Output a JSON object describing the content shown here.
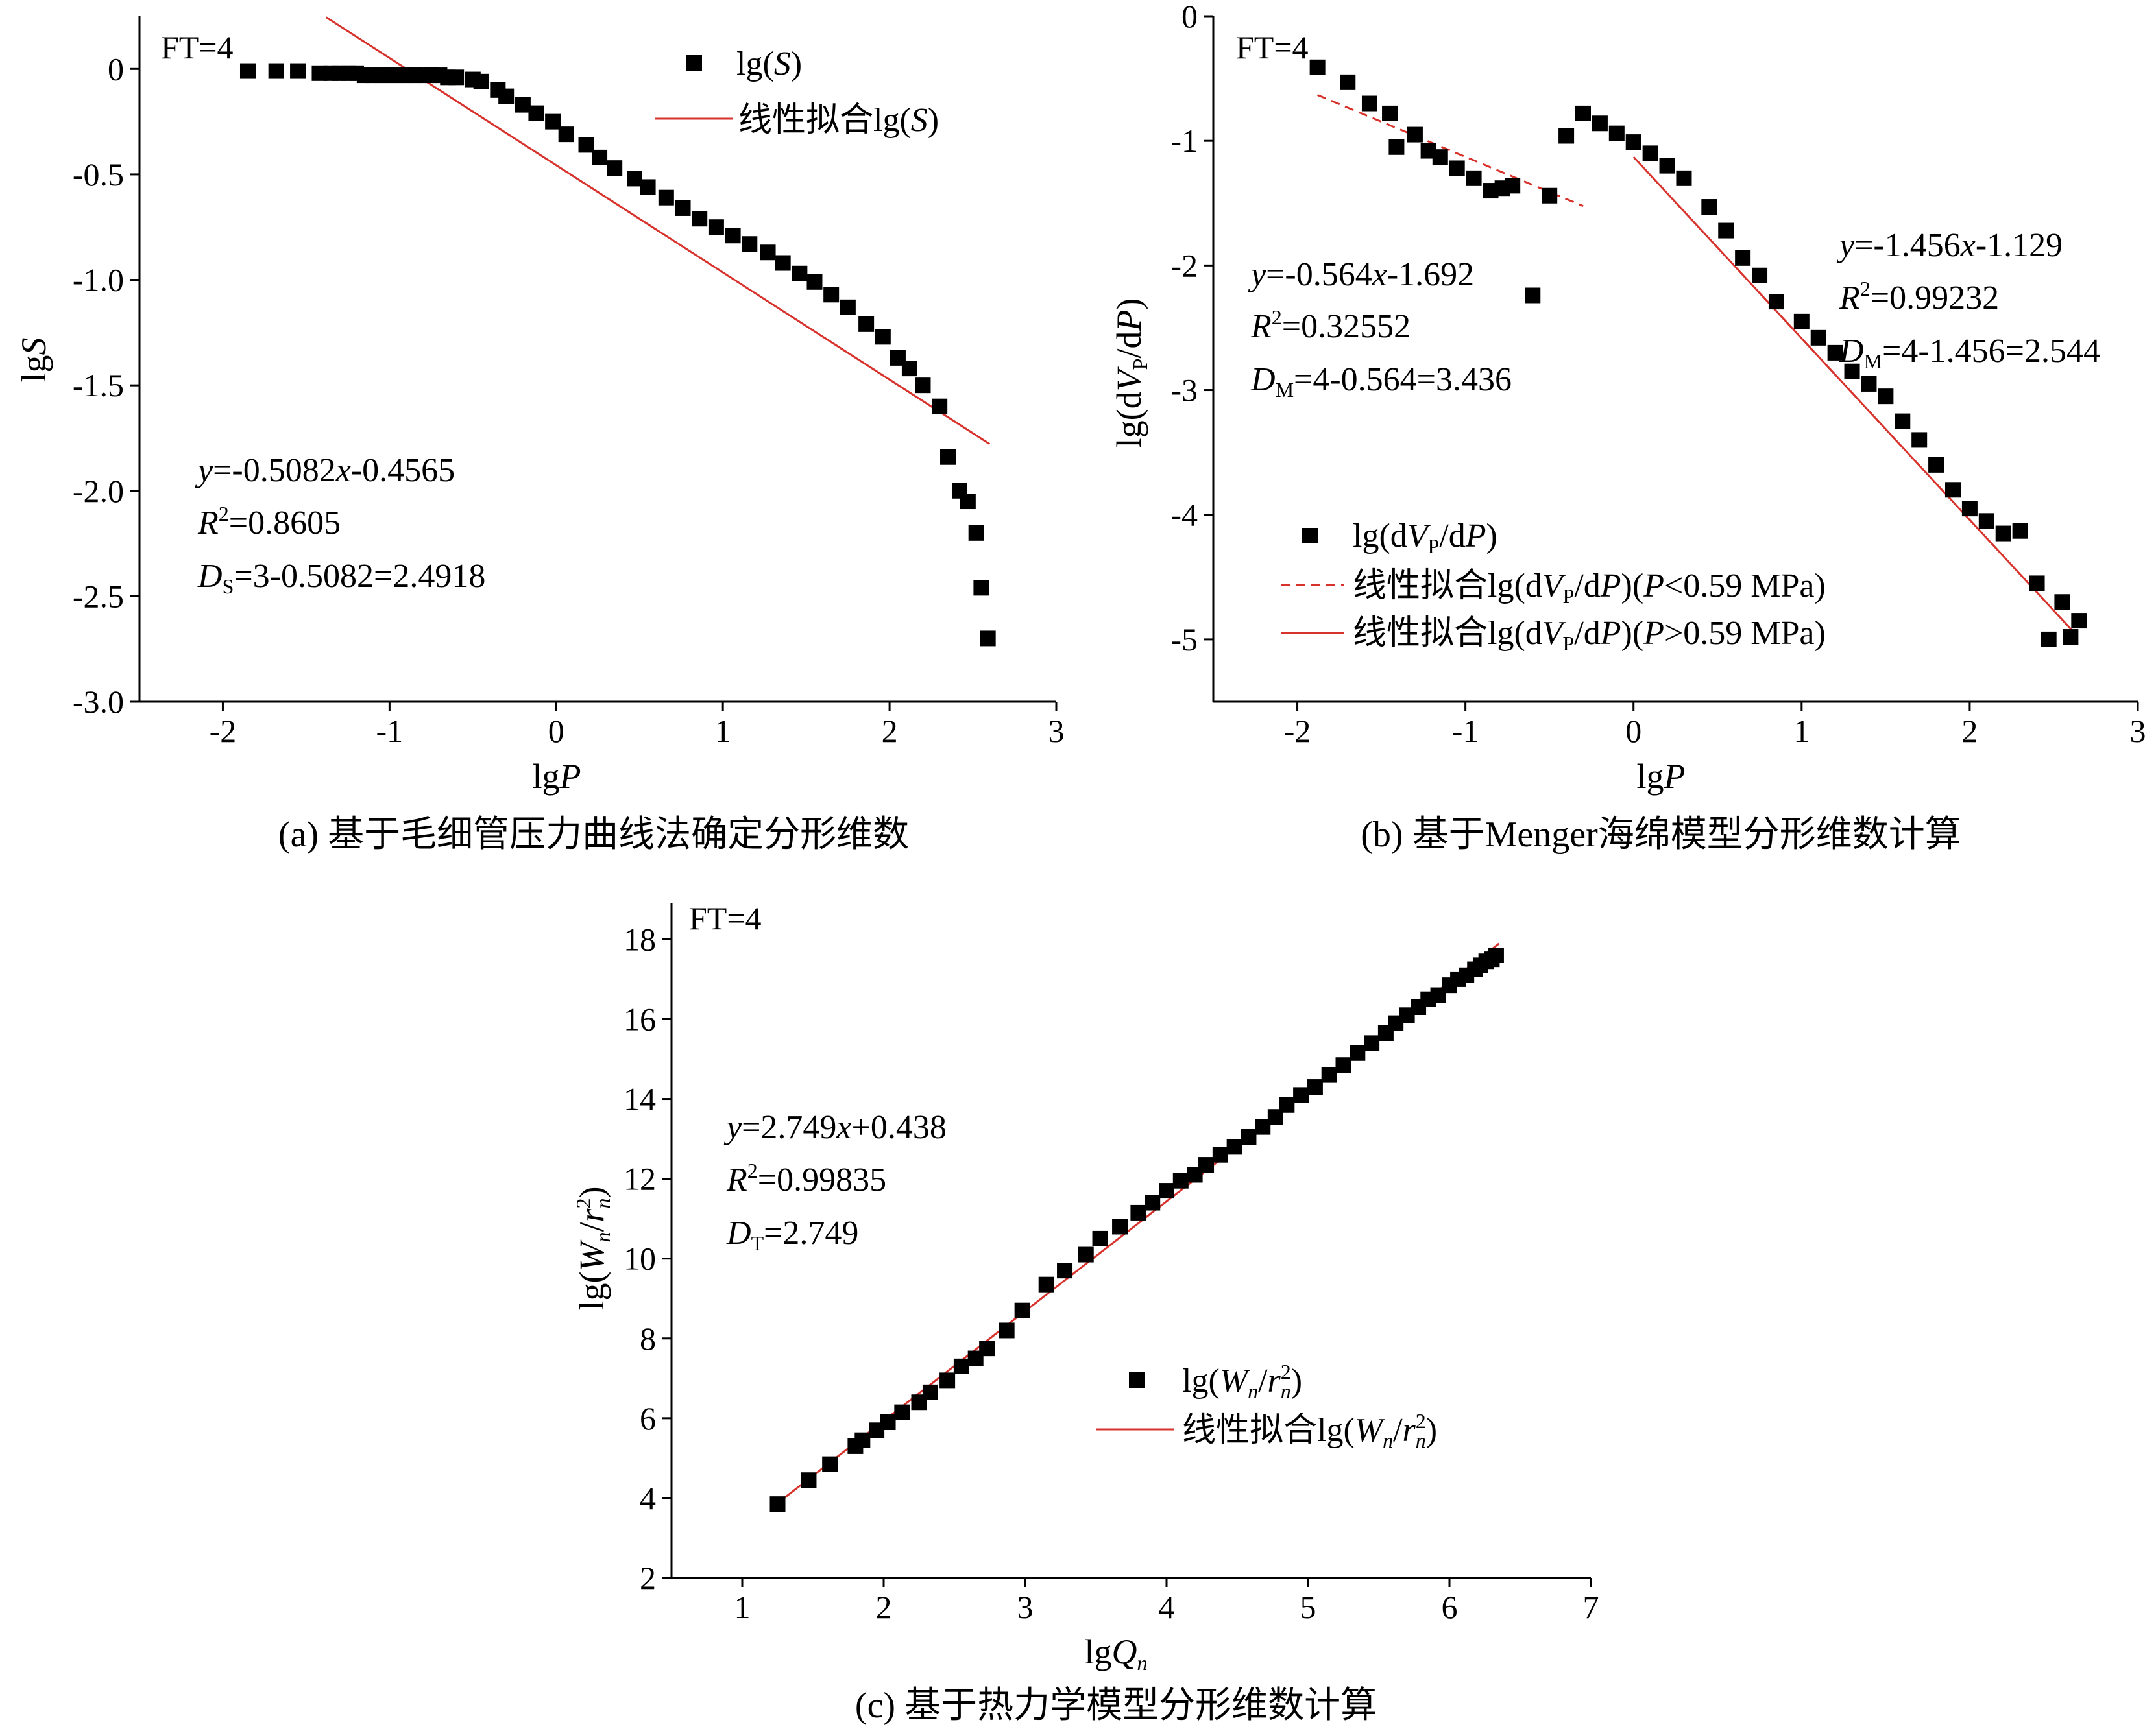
{
  "colors": {
    "fit": "#d8322c",
    "points": "#000000",
    "axis": "#000000"
  },
  "chart_data": [
    {
      "id": "a",
      "type": "scatter",
      "caption": "(a) 基于毛细管压力曲线法确定分形维数",
      "corner_label": "FT=4",
      "xlabel": "lgP",
      "ylabel": "lgS",
      "xlim": [
        -2.5,
        3
      ],
      "ylim": [
        -3.0,
        0.25
      ],
      "xticks": [
        -2,
        -1,
        0,
        1,
        2,
        3
      ],
      "xtick_labels": [
        "-2",
        "-1",
        "0",
        "1",
        "2",
        "3"
      ],
      "yticks": [
        0,
        -0.5,
        -1.0,
        -1.5,
        -2.0,
        -2.5,
        -3.0
      ],
      "ytick_labels": [
        "0",
        "-0.5",
        "-1.0",
        "-1.5",
        "-2.0",
        "-2.5",
        "-3.0"
      ],
      "legend_position": "top-right",
      "series": [
        {
          "name": "lg(S)",
          "kind": "points",
          "x": [
            -1.85,
            -1.68,
            -1.55,
            -1.42,
            -1.35,
            -1.3,
            -1.25,
            -1.2,
            -1.15,
            -1.1,
            -1.05,
            -1.0,
            -0.95,
            -0.9,
            -0.85,
            -0.8,
            -0.75,
            -0.7,
            -0.65,
            -0.6,
            -0.5,
            -0.45,
            -0.35,
            -0.3,
            -0.2,
            -0.12,
            -0.02,
            0.06,
            0.18,
            0.26,
            0.35,
            0.47,
            0.55,
            0.66,
            0.76,
            0.86,
            0.96,
            1.06,
            1.16,
            1.27,
            1.36,
            1.46,
            1.55,
            1.65,
            1.75,
            1.86,
            1.96,
            2.05,
            2.12,
            2.2,
            2.3,
            2.35,
            2.42,
            2.47,
            2.52,
            2.55,
            2.59
          ],
          "y": [
            -0.01,
            -0.01,
            -0.01,
            -0.02,
            -0.02,
            -0.02,
            -0.02,
            -0.02,
            -0.03,
            -0.03,
            -0.03,
            -0.03,
            -0.03,
            -0.03,
            -0.03,
            -0.03,
            -0.03,
            -0.03,
            -0.04,
            -0.04,
            -0.05,
            -0.06,
            -0.1,
            -0.13,
            -0.17,
            -0.21,
            -0.25,
            -0.31,
            -0.36,
            -0.42,
            -0.47,
            -0.52,
            -0.56,
            -0.61,
            -0.66,
            -0.71,
            -0.75,
            -0.79,
            -0.83,
            -0.87,
            -0.92,
            -0.97,
            -1.01,
            -1.07,
            -1.13,
            -1.21,
            -1.27,
            -1.37,
            -1.42,
            -1.5,
            -1.6,
            -1.84,
            -2.0,
            -2.05,
            -2.2,
            -2.46,
            -2.7
          ]
        },
        {
          "name": "线性拟合lg(S)",
          "kind": "line",
          "style": "solid",
          "x": [
            -1.38,
            2.6
          ],
          "y": [
            0.245,
            -1.778
          ]
        }
      ],
      "annotations": [
        "y=-0.5082x-0.4565",
        "R²=0.8605",
        "DS=3-0.5082=2.4918"
      ]
    },
    {
      "id": "b",
      "type": "scatter",
      "caption": "(b) 基于Menger海绵模型分形维数计算",
      "corner_label": "FT=4",
      "xlabel": "lgP",
      "ylabel": "lg(dVP/dP)",
      "xlim": [
        -2.5,
        3
      ],
      "ylim": [
        -5.5,
        0
      ],
      "xticks": [
        -2,
        -1,
        0,
        1,
        2,
        3
      ],
      "xtick_labels": [
        "-2",
        "-1",
        "0",
        "1",
        "2",
        "3"
      ],
      "yticks": [
        0,
        -1,
        -2,
        -3,
        -4,
        -5
      ],
      "ytick_labels": [
        "0",
        "-1",
        "-2",
        "-3",
        "-4",
        "-5"
      ],
      "legend_position": "bottom-left",
      "series": [
        {
          "name": "lg(dVP/dP)",
          "kind": "points",
          "x": [
            -1.88,
            -1.7,
            -1.57,
            -1.45,
            -1.41,
            -1.3,
            -1.22,
            -1.15,
            -1.05,
            -0.95,
            -0.85,
            -0.78,
            -0.72,
            -0.6,
            -0.5,
            -0.4,
            -0.3,
            -0.2,
            -0.1,
            0.0,
            0.1,
            0.2,
            0.3,
            0.45,
            0.55,
            0.65,
            0.75,
            0.85,
            1.0,
            1.1,
            1.2,
            1.3,
            1.4,
            1.5,
            1.6,
            1.7,
            1.8,
            1.9,
            2.0,
            2.1,
            2.2,
            2.3,
            2.4,
            2.47,
            2.55,
            2.6,
            2.65
          ],
          "y": [
            -0.41,
            -0.53,
            -0.7,
            -0.78,
            -1.05,
            -0.95,
            -1.08,
            -1.13,
            -1.22,
            -1.3,
            -1.4,
            -1.38,
            -1.36,
            -2.24,
            -1.44,
            -0.96,
            -0.78,
            -0.86,
            -0.94,
            -1.01,
            -1.1,
            -1.2,
            -1.3,
            -1.53,
            -1.72,
            -1.94,
            -2.08,
            -2.29,
            -2.45,
            -2.58,
            -2.7,
            -2.85,
            -2.95,
            -3.05,
            -3.25,
            -3.4,
            -3.6,
            -3.8,
            -3.95,
            -4.05,
            -4.15,
            -4.13,
            -4.55,
            -5.0,
            -4.7,
            -4.98,
            -4.85
          ]
        },
        {
          "name": "线性拟合lg(dVP/dP)(P<0.59 MPa)",
          "kind": "line",
          "style": "dashed",
          "x": [
            -1.88,
            -0.3
          ],
          "y": [
            -0.632,
            -1.523
          ]
        },
        {
          "name": "线性拟合lg(dVP/dP)(P>0.59 MPa)",
          "kind": "line",
          "style": "solid",
          "x": [
            0.0,
            2.62
          ],
          "y": [
            -1.129,
            -4.944
          ]
        }
      ],
      "annotations_left": [
        "y=-0.564x-1.692",
        "R²=0.32552",
        "DM=4-0.564=3.436"
      ],
      "annotations_right": [
        "y=-1.456x-1.129",
        "R²=0.99232",
        "DM=4-1.456=2.544"
      ]
    },
    {
      "id": "c",
      "type": "scatter",
      "caption": "(c) 基于热力学模型分形维数计算",
      "corner_label": "FT=4",
      "xlabel": "lgQn",
      "ylabel": "lg(Wn/rn²)",
      "xlim": [
        0.5,
        7
      ],
      "ylim": [
        2,
        18.9
      ],
      "xticks": [
        1,
        2,
        3,
        4,
        5,
        6,
        7
      ],
      "xtick_labels": [
        "1",
        "2",
        "3",
        "4",
        "5",
        "6",
        "7"
      ],
      "yticks": [
        2,
        4,
        6,
        8,
        10,
        12,
        14,
        16,
        18
      ],
      "ytick_labels": [
        "2",
        "4",
        "6",
        "8",
        "10",
        "12",
        "14",
        "16",
        "18"
      ],
      "legend_position": "bottom-right",
      "series": [
        {
          "name": "lg(Wn/rn²)",
          "kind": "points",
          "x": [
            1.25,
            1.47,
            1.62,
            1.8,
            1.85,
            1.95,
            2.03,
            2.13,
            2.25,
            2.33,
            2.45,
            2.55,
            2.65,
            2.73,
            2.87,
            2.98,
            3.15,
            3.28,
            3.43,
            3.53,
            3.67,
            3.8,
            3.9,
            4.0,
            4.1,
            4.2,
            4.28,
            4.38,
            4.48,
            4.58,
            4.68,
            4.77,
            4.85,
            4.95,
            5.05,
            5.15,
            5.25,
            5.35,
            5.45,
            5.55,
            5.62,
            5.7,
            5.78,
            5.85,
            5.92,
            6.0,
            6.06,
            6.12,
            6.18,
            6.22,
            6.26,
            6.3,
            6.33
          ],
          "y": [
            3.85,
            4.45,
            4.85,
            5.3,
            5.45,
            5.7,
            5.9,
            6.15,
            6.4,
            6.65,
            6.95,
            7.3,
            7.5,
            7.75,
            8.2,
            8.7,
            9.35,
            9.7,
            10.1,
            10.5,
            10.8,
            11.15,
            11.4,
            11.7,
            11.95,
            12.1,
            12.35,
            12.6,
            12.8,
            13.05,
            13.3,
            13.55,
            13.85,
            14.1,
            14.3,
            14.6,
            14.85,
            15.15,
            15.4,
            15.65,
            15.9,
            16.1,
            16.3,
            16.5,
            16.6,
            16.85,
            17.0,
            17.1,
            17.25,
            17.35,
            17.45,
            17.5,
            17.6
          ]
        },
        {
          "name": "线性拟合lg(Wn/rn²)",
          "kind": "line",
          "style": "solid",
          "x": [
            1.25,
            6.35
          ],
          "y": [
            3.874,
            17.894
          ]
        }
      ],
      "annotations": [
        "y=2.749x+0.438",
        "R²=0.99835",
        "DT=2.749"
      ]
    }
  ]
}
